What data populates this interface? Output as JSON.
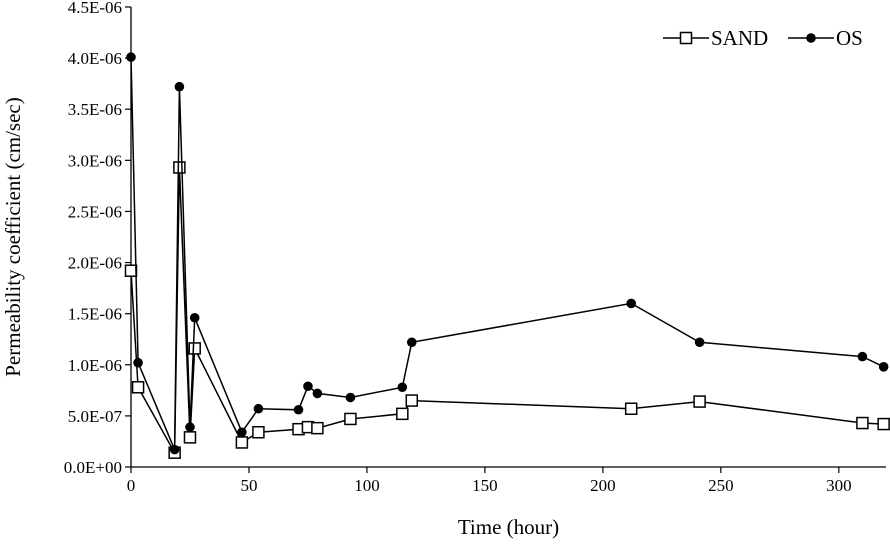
{
  "chart_data": {
    "type": "line",
    "title": "",
    "xlabel": "Time (hour)",
    "ylabel": "Permeability coefficient (cm/sec)",
    "xlim": [
      0,
      320
    ],
    "ylim": [
      0,
      4.5e-06
    ],
    "xticks": [
      0,
      50,
      100,
      150,
      200,
      250,
      300
    ],
    "xtick_labels": [
      "0",
      "50",
      "100",
      "150",
      "200",
      "250",
      "300"
    ],
    "yticks": [
      0,
      5e-07,
      1e-06,
      1.5e-06,
      2e-06,
      2.5e-06,
      3e-06,
      3.5e-06,
      4e-06,
      4.5e-06
    ],
    "ytick_labels": [
      "0.0E+00",
      "5.0E-07",
      "1.0E-06",
      "1.5E-06",
      "2.0E-06",
      "2.5E-06",
      "3.0E-06",
      "3.5E-06",
      "4.0E-06",
      "4.5E-06"
    ],
    "grid": false,
    "legend_position": "top-right",
    "series": [
      {
        "name": "SAND",
        "marker": "open-square",
        "color": "#000000",
        "x": [
          0,
          3,
          18.5,
          20.5,
          25,
          27,
          47,
          54,
          71,
          75,
          79,
          93,
          115,
          119,
          212,
          241,
          310,
          319
        ],
        "y": [
          1.92e-06,
          7.8e-07,
          1.4e-07,
          2.93e-06,
          2.9e-07,
          1.16e-06,
          2.4e-07,
          3.4e-07,
          3.7e-07,
          3.9e-07,
          3.8e-07,
          4.7e-07,
          5.2e-07,
          6.5e-07,
          5.7e-07,
          6.4e-07,
          4.3e-07,
          4.2e-07
        ]
      },
      {
        "name": "OS",
        "marker": "filled-circle",
        "color": "#000000",
        "x": [
          0,
          3,
          18.5,
          20.5,
          25,
          27,
          47,
          54,
          71,
          75,
          79,
          93,
          115,
          119,
          212,
          241,
          310,
          319
        ],
        "y": [
          4.01e-06,
          1.02e-06,
          1.7e-07,
          3.72e-06,
          3.9e-07,
          1.46e-06,
          3.4e-07,
          5.7e-07,
          5.6e-07,
          7.9e-07,
          7.2e-07,
          6.8e-07,
          7.8e-07,
          1.22e-06,
          1.6e-06,
          1.22e-06,
          1.08e-06,
          9.8e-07
        ]
      }
    ]
  }
}
